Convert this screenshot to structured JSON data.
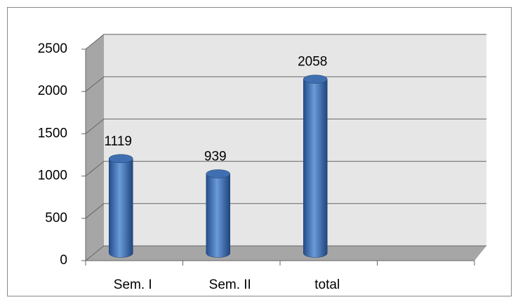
{
  "chart_data": {
    "type": "bar",
    "style": "3d-cylinder",
    "categories": [
      "Sem. I",
      "Sem. II",
      "total",
      null
    ],
    "values": [
      1119,
      939,
      2058,
      null
    ],
    "value_labels": [
      "1119",
      "939",
      "2058",
      null
    ],
    "color": "#4f81bd",
    "ylim": [
      0,
      2500
    ],
    "yticks": [
      0,
      500,
      1000,
      1500,
      2000,
      2500
    ],
    "grid": true
  }
}
